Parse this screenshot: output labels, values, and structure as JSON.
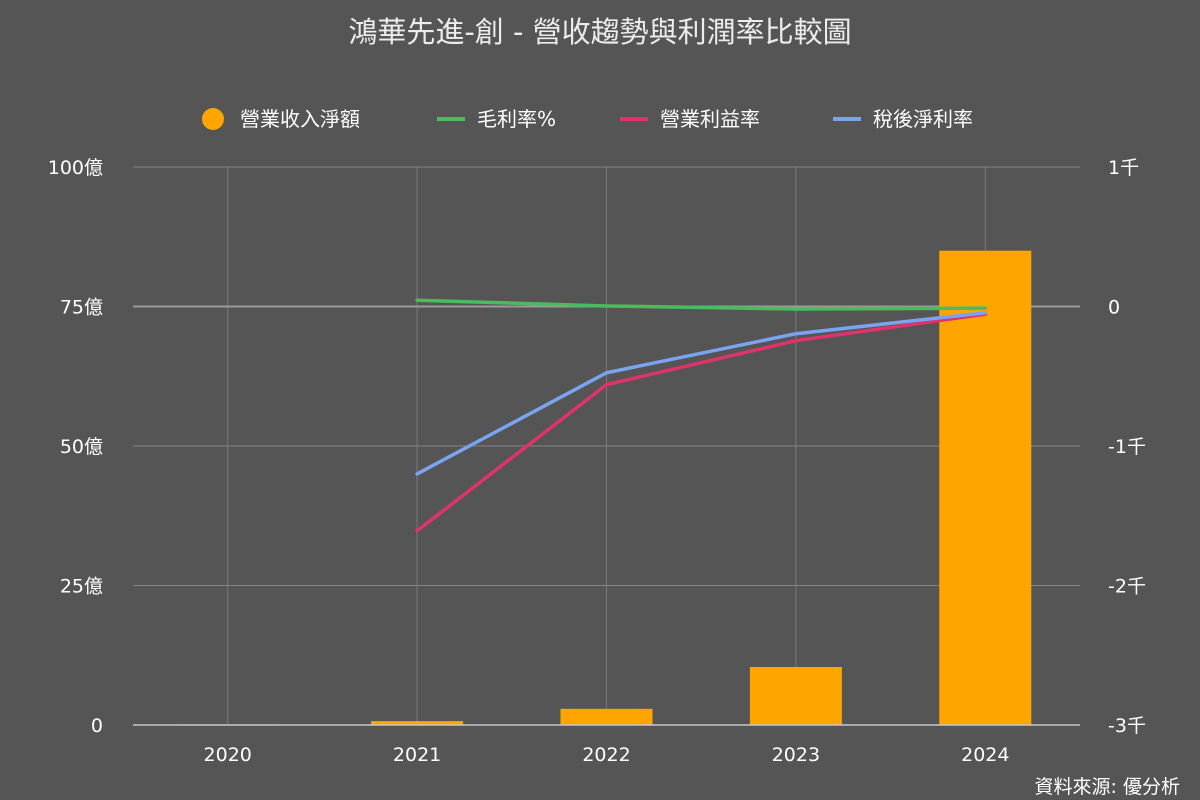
{
  "chart_data": {
    "type": "bar",
    "title": "鴻華先進-創 - 營收趨勢與利潤率比較圖",
    "categories": [
      "2020",
      "2021",
      "2022",
      "2023",
      "2024"
    ],
    "bar_series": {
      "name": "營業收入淨額",
      "color": "#FFA500",
      "values": [
        0.1,
        0.7,
        2.9,
        10.4,
        85.0
      ]
    },
    "line_series": [
      {
        "name": "毛利率%",
        "color": "#4CBB5F",
        "values": [
          null,
          45,
          4,
          -18,
          -12
        ]
      },
      {
        "name": "營業利益率",
        "color": "#E0336A",
        "values": [
          null,
          -1608,
          -560,
          -245,
          -55
        ]
      },
      {
        "name": "稅後淨利率",
        "color": "#7BA4F0",
        "values": [
          null,
          -1200,
          -475,
          -195,
          -45
        ]
      }
    ],
    "left_axis": {
      "min": 0,
      "max": 100,
      "ticks": [
        0,
        25,
        50,
        75,
        100
      ],
      "tick_labels": [
        "0",
        "25億",
        "50億",
        "75億",
        "100億"
      ]
    },
    "right_axis": {
      "min": -3000,
      "max": 1000,
      "ticks": [
        -3000,
        -2000,
        -1000,
        0,
        1000
      ],
      "tick_labels": [
        "-3千",
        "-2千",
        "-1千",
        "0",
        "1千"
      ]
    },
    "grid": true,
    "legend_position": "top"
  },
  "source_text": "資料來源: 優分析"
}
